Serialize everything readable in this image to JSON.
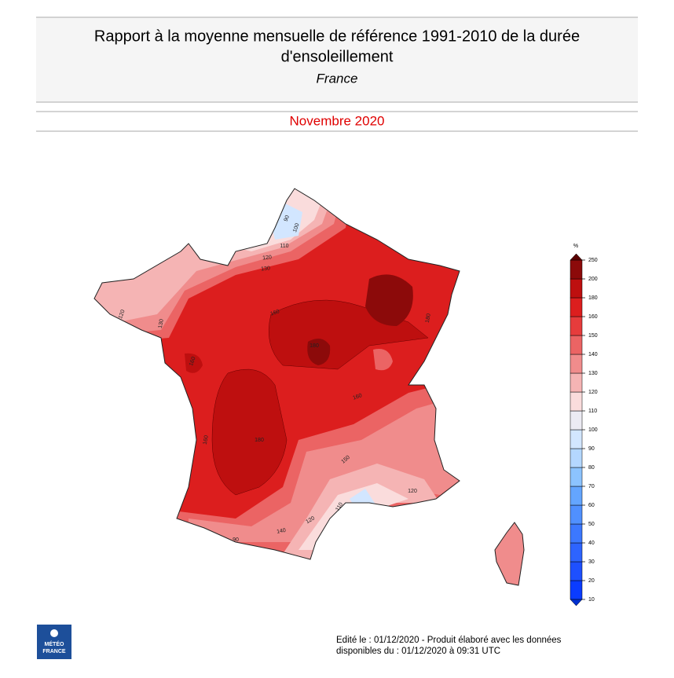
{
  "header": {
    "title_lines": [
      "Rapport à la moyenne mensuelle de référence 1991-2010 de la durée",
      "d'ensoleillement"
    ],
    "subtitle": "France",
    "period": "Novembre 2020"
  },
  "colorbar": {
    "unit": "%",
    "ticks": [
      10,
      20,
      30,
      40,
      50,
      60,
      70,
      80,
      90,
      100,
      110,
      120,
      130,
      140,
      150,
      160,
      180,
      200,
      250
    ],
    "colors": [
      "#0a3cff",
      "#1e50ff",
      "#2d64ff",
      "#3c78ff",
      "#5090ff",
      "#64a5ff",
      "#8cc3ff",
      "#b4d7ff",
      "#d2e6ff",
      "#ecebf3",
      "#fadcdc",
      "#f5b4b4",
      "#f08c8c",
      "#eb6464",
      "#e63c3c",
      "#dc1e1e",
      "#be0f0f",
      "#8c0a0a"
    ],
    "under_color": "#0030d0",
    "over_color": "#5a0000"
  },
  "map": {
    "contour_labels": [
      90,
      100,
      110,
      120,
      130,
      130,
      120,
      160,
      180,
      160,
      180,
      160,
      150,
      120,
      110,
      120,
      140,
      90,
      160,
      180
    ]
  },
  "footer": {
    "logo_lines": [
      "MÉTÉO",
      "FRANCE"
    ],
    "lines": [
      "Edité le : 01/12/2020 - Produit élaboré avec les données",
      "disponibles du : 01/12/2020 à 09:31 UTC"
    ]
  }
}
